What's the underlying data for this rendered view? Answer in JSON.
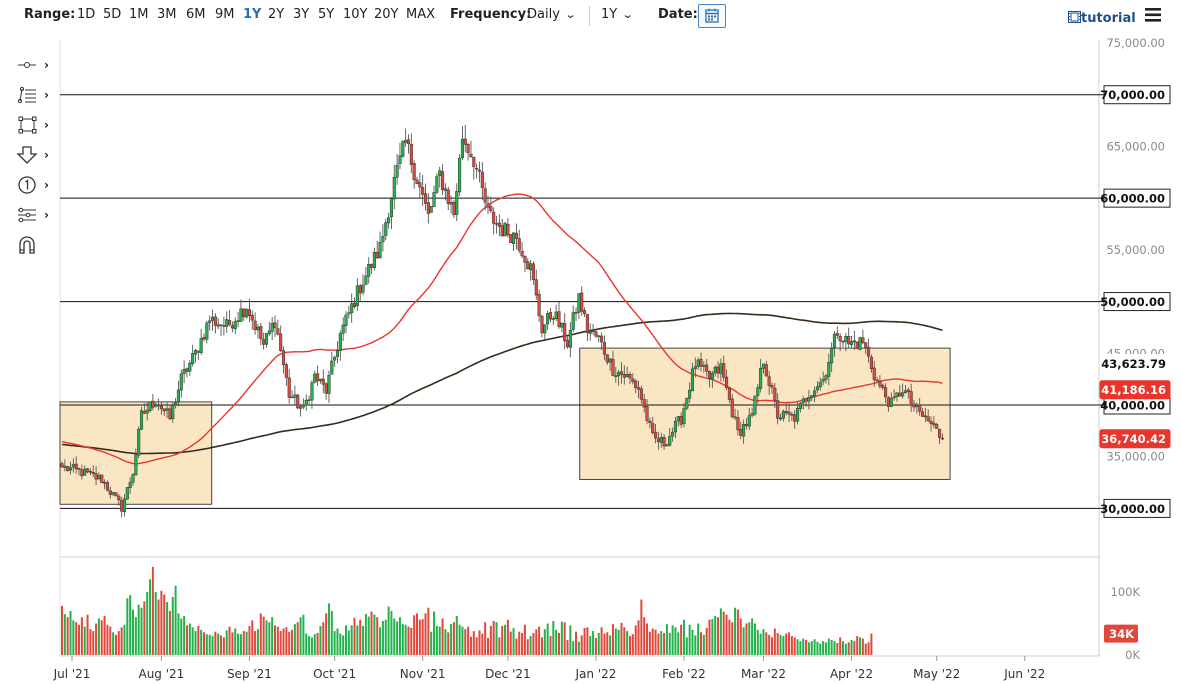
{
  "toolbar": {
    "range_label": "Range:",
    "ranges": [
      "1D",
      "5D",
      "1M",
      "3M",
      "6M",
      "9M",
      "1Y",
      "2Y",
      "3Y",
      "5Y",
      "10Y",
      "20Y",
      "MAX"
    ],
    "active_range": "1Y",
    "frequency_label": "Frequency:",
    "frequency_value": "Daily",
    "period_value": "1Y",
    "date_label": "Date:",
    "tutorial_label": "tutorial"
  },
  "drawing_tools": [
    "crosshair-tool-icon",
    "fibonacci-tool-icon",
    "rectangle-tool-icon",
    "arrow-down-tool-icon",
    "numbered-marker-icon",
    "pitchfork-tool-icon",
    "magnet-icon"
  ],
  "colors": {
    "up": "#22b24c",
    "down": "#e0483c",
    "ma_short": "#e8362c",
    "ma_long": "#3a2a1a",
    "range_box_fill": "#fbe6c4",
    "range_box_stroke": "#444444"
  },
  "chart_data": {
    "type": "candlestick",
    "title": "",
    "price_axis": {
      "ticks": [
        "75,000.00",
        "70,000.00",
        "65,000.00",
        "60,000.00",
        "55,000.00",
        "50,000.00",
        "45,000.00",
        "40,000.00",
        "35,000.00",
        "30,000.00"
      ],
      "ylim": [
        25400,
        75000
      ]
    },
    "volume_axis": {
      "ticks": [
        "100K",
        "0K"
      ],
      "ylim": [
        0,
        160000
      ]
    },
    "x_labels": [
      "Jul '21",
      "Aug '21",
      "Sep '21",
      "Oct '21",
      "Nov '21",
      "Dec '21",
      "Jan '22",
      "Feb '22",
      "Mar '22",
      "Apr '22",
      "May '22",
      "Jun '22"
    ],
    "horizontal_levels": [
      {
        "label": "70,000.00",
        "value": 70000
      },
      {
        "label": "60,000.00",
        "value": 60000
      },
      {
        "label": "50,000.00",
        "value": 50000
      },
      {
        "label": "40,000.00",
        "value": 40000
      },
      {
        "label": "30,000.00",
        "value": 30000
      }
    ],
    "price_tags": [
      {
        "label": "43,623.79",
        "value": 43624,
        "color": "#3a2a1a"
      },
      {
        "label": "41,186.16",
        "value": 41186,
        "color": "#e8362c"
      },
      {
        "label": "36,740.42",
        "value": 36740,
        "color": "#e8362c"
      }
    ],
    "volume_tag": {
      "label": "34K",
      "value": 34000
    },
    "boxes": [
      {
        "from_day": 0,
        "to_day": 52,
        "low": 30400,
        "high": 40300
      },
      {
        "from_day": 183,
        "to_day": 312,
        "low": 32800,
        "high": 45500
      }
    ],
    "anchors": [
      [
        0,
        34000
      ],
      [
        7,
        33500
      ],
      [
        14,
        32800
      ],
      [
        21,
        30100
      ],
      [
        25,
        33500
      ],
      [
        28,
        39000
      ],
      [
        33,
        40500
      ],
      [
        38,
        38700
      ],
      [
        42,
        42500
      ],
      [
        47,
        45000
      ],
      [
        52,
        48300
      ],
      [
        58,
        47600
      ],
      [
        65,
        49600
      ],
      [
        71,
        45800
      ],
      [
        75,
        48200
      ],
      [
        80,
        41000
      ],
      [
        85,
        39500
      ],
      [
        89,
        42800
      ],
      [
        93,
        41400
      ],
      [
        98,
        46800
      ],
      [
        105,
        51500
      ],
      [
        112,
        55200
      ],
      [
        117,
        61600
      ],
      [
        121,
        65400
      ],
      [
        126,
        61000
      ],
      [
        129,
        58200
      ],
      [
        133,
        62300
      ],
      [
        138,
        58500
      ],
      [
        141,
        66000
      ],
      [
        145,
        63800
      ],
      [
        150,
        58500
      ],
      [
        155,
        57000
      ],
      [
        160,
        56300
      ],
      [
        165,
        53200
      ],
      [
        169,
        47400
      ],
      [
        173,
        49000
      ],
      [
        178,
        46000
      ],
      [
        182,
        50400
      ],
      [
        185,
        47300
      ],
      [
        189,
        46400
      ],
      [
        194,
        43500
      ],
      [
        199,
        42700
      ],
      [
        203,
        41600
      ],
      [
        208,
        36800
      ],
      [
        212,
        36300
      ],
      [
        218,
        38700
      ],
      [
        223,
        44000
      ],
      [
        228,
        42600
      ],
      [
        232,
        43600
      ],
      [
        238,
        37300
      ],
      [
        243,
        38900
      ],
      [
        247,
        44400
      ],
      [
        252,
        39000
      ],
      [
        258,
        38800
      ],
      [
        263,
        41200
      ],
      [
        268,
        42500
      ],
      [
        273,
        47200
      ],
      [
        277,
        45900
      ],
      [
        282,
        46100
      ],
      [
        287,
        42200
      ],
      [
        292,
        40000
      ],
      [
        296,
        41600
      ],
      [
        301,
        39400
      ],
      [
        306,
        38200
      ],
      [
        310,
        36740
      ]
    ],
    "volume": [
      78,
      65,
      60,
      70,
      55,
      52,
      48,
      60,
      45,
      64,
      41,
      38,
      50,
      58,
      55,
      62,
      48,
      45,
      36,
      32,
      38,
      44,
      48,
      90,
      95,
      72,
      60,
      80,
      75,
      85,
      100,
      120,
      140,
      100,
      88,
      102,
      96,
      84,
      70,
      92,
      110,
      66,
      58,
      62,
      47,
      50,
      44,
      38,
      46,
      40,
      36,
      33,
      32,
      30,
      37,
      34,
      31,
      28,
      39,
      45,
      36,
      42,
      34,
      33,
      38,
      37,
      46,
      55,
      38,
      41,
      66,
      61,
      55,
      52,
      60,
      47,
      45,
      38,
      42,
      44,
      37,
      40,
      49,
      52,
      60,
      64,
      34,
      30,
      28,
      33,
      35,
      46,
      52,
      66,
      82,
      70,
      38,
      42,
      34,
      31,
      47,
      39,
      47,
      59,
      47,
      56,
      46,
      65,
      61,
      69,
      64,
      60,
      44,
      54,
      56,
      77,
      70,
      58,
      53,
      60,
      49,
      48,
      45,
      43,
      63,
      66,
      56,
      57,
      66,
      75,
      37,
      69,
      46,
      45,
      58,
      41,
      36,
      49,
      52,
      62,
      48,
      45,
      41,
      45,
      29,
      38,
      28,
      39,
      34,
      52,
      27,
      46,
      54,
      52,
      28,
      46,
      48,
      56,
      37,
      43,
      26,
      37,
      35,
      48,
      25,
      30,
      35,
      41,
      45,
      28,
      41,
      50,
      30,
      54,
      40,
      35,
      53,
      52,
      24,
      47,
      22,
      37,
      21,
      31,
      43,
      44,
      30,
      38,
      27,
      35,
      44,
      34,
      36,
      31,
      49,
      42,
      40,
      51,
      44,
      38,
      30,
      33,
      47,
      55,
      88,
      60,
      50,
      37,
      42,
      40,
      34,
      38,
      35,
      49,
      35,
      47,
      44,
      36,
      48,
      56,
      28,
      48,
      40,
      31,
      50,
      36,
      32,
      43,
      56,
      57,
      62,
      60,
      74,
      69,
      64,
      56,
      52,
      75,
      72,
      58,
      44,
      50,
      52,
      58,
      50,
      40,
      34,
      41,
      36,
      32,
      28,
      42,
      35,
      32,
      30,
      34,
      36,
      30,
      28,
      25,
      22,
      26,
      24,
      20,
      22,
      25,
      21,
      18,
      22,
      20,
      26,
      24,
      22,
      19,
      28,
      22,
      18,
      20,
      24,
      22,
      30,
      28,
      26,
      18,
      20,
      34
    ],
    "x_first_label": "Jul '21",
    "last_day": 310
  }
}
